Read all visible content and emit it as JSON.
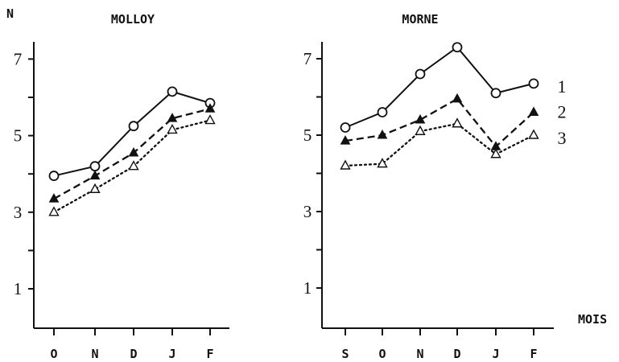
{
  "y_axis_label": "N",
  "x_axis_label": "MOIS",
  "chart_data": [
    {
      "type": "line",
      "title": "MOLLOY",
      "ylabel": "N",
      "xlabel": "",
      "ylim": [
        0,
        8
      ],
      "yticks": [
        "1",
        "3",
        "5",
        "7"
      ],
      "categories": [
        "O",
        "N",
        "D",
        "J",
        "F"
      ],
      "series": [
        {
          "name": "1",
          "marker": "open-circle",
          "line": "solid",
          "values": [
            3.95,
            4.2,
            5.25,
            6.15,
            5.85
          ]
        },
        {
          "name": "2",
          "marker": "filled-triangle",
          "line": "dashed",
          "values": [
            3.35,
            3.95,
            4.55,
            5.45,
            5.7
          ]
        },
        {
          "name": "3",
          "marker": "open-triangle",
          "line": "dotted",
          "values": [
            3.0,
            3.6,
            4.2,
            5.15,
            5.4
          ]
        }
      ],
      "series_labels_shown": false
    },
    {
      "type": "line",
      "title": "MORNE",
      "ylabel": "",
      "xlabel": "MOIS",
      "ylim": [
        0,
        8
      ],
      "yticks": [
        "1",
        "3",
        "5",
        "7"
      ],
      "categories": [
        "S",
        "O",
        "N",
        "D",
        "J",
        "F"
      ],
      "series": [
        {
          "name": "1",
          "marker": "open-circle",
          "line": "solid",
          "values": [
            5.2,
            5.6,
            6.6,
            7.3,
            6.1,
            6.35
          ]
        },
        {
          "name": "2",
          "marker": "filled-triangle",
          "line": "dashed",
          "values": [
            4.85,
            5.0,
            5.4,
            5.95,
            4.7,
            5.6
          ]
        },
        {
          "name": "3",
          "marker": "open-triangle",
          "line": "dotted",
          "values": [
            4.2,
            4.25,
            5.1,
            5.3,
            4.5,
            5.0
          ]
        }
      ],
      "series_labels_shown": true
    }
  ]
}
